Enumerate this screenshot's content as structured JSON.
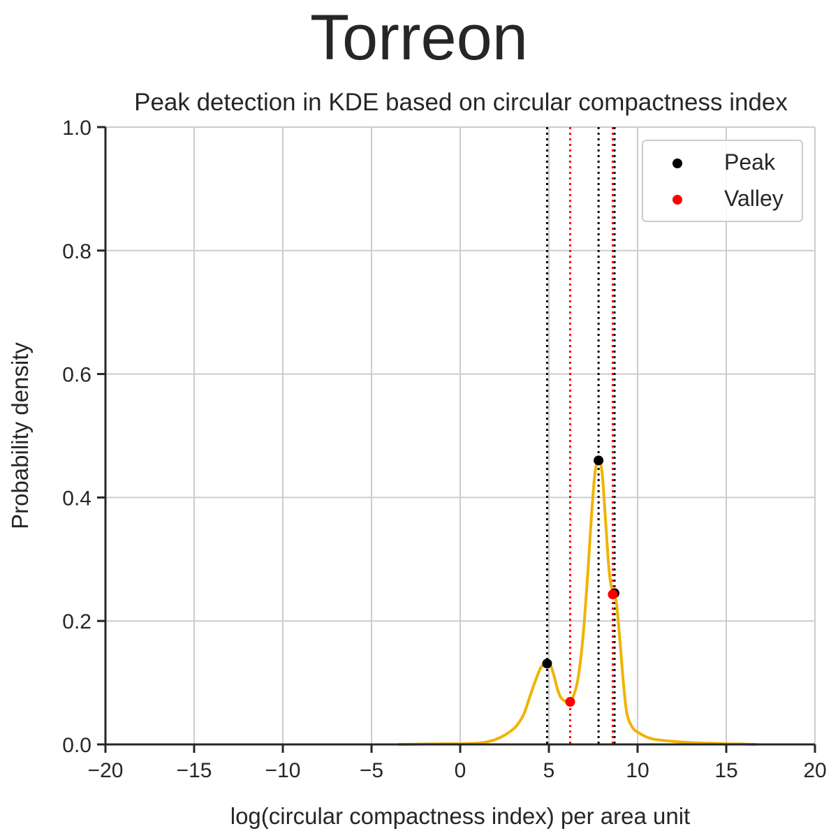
{
  "chart_data": {
    "type": "line",
    "suptitle": "Torreon",
    "title": "Peak detection in KDE based on circular compactness index",
    "xlabel": "log(circular compactness index) per area unit",
    "ylabel": "Probability density",
    "xlim": [
      -20,
      20
    ],
    "ylim": [
      0,
      1.0
    ],
    "xticks": [
      -20,
      -15,
      -10,
      -5,
      0,
      5,
      10,
      15,
      20
    ],
    "xtick_labels": [
      "−20",
      "−15",
      "−10",
      "−5",
      "0",
      "5",
      "10",
      "15",
      "20"
    ],
    "yticks": [
      0.0,
      0.2,
      0.4,
      0.6,
      0.8,
      1.0
    ],
    "ytick_labels": [
      "0.0",
      "0.2",
      "0.4",
      "0.6",
      "0.8",
      "1.0"
    ],
    "grid": true,
    "kde": {
      "color": "#f0b400",
      "x": [
        -3.5,
        -2.0,
        -1.0,
        0.0,
        1.0,
        1.5,
        2.0,
        2.5,
        3.0,
        3.3,
        3.6,
        3.9,
        4.2,
        4.5,
        4.7,
        4.9,
        5.1,
        5.3,
        5.5,
        5.7,
        6.0,
        6.2,
        6.4,
        6.6,
        6.8,
        7.0,
        7.2,
        7.4,
        7.6,
        7.8,
        8.0,
        8.2,
        8.4,
        8.6,
        8.8,
        9.0,
        9.2,
        9.4,
        9.7,
        10.0,
        10.5,
        11.0,
        12.0,
        13.0,
        14.0,
        15.0,
        16.0,
        16.7
      ],
      "y": [
        0.0,
        0.0005,
        0.001,
        0.001,
        0.002,
        0.004,
        0.008,
        0.015,
        0.025,
        0.035,
        0.05,
        0.075,
        0.1,
        0.122,
        0.13,
        0.133,
        0.128,
        0.11,
        0.088,
        0.075,
        0.069,
        0.07,
        0.08,
        0.1,
        0.14,
        0.2,
        0.28,
        0.37,
        0.44,
        0.46,
        0.44,
        0.36,
        0.28,
        0.245,
        0.23,
        0.17,
        0.1,
        0.05,
        0.028,
        0.02,
        0.012,
        0.008,
        0.005,
        0.003,
        0.002,
        0.001,
        0.0005,
        0.0
      ]
    },
    "peaks": {
      "label": "Peak",
      "color": "#000000",
      "x": [
        4.9,
        7.8,
        8.7
      ],
      "y": [
        0.131,
        0.46,
        0.245
      ]
    },
    "valleys": {
      "label": "Valley",
      "color": "#ff0000",
      "x": [
        6.2,
        8.6
      ],
      "y": [
        0.069,
        0.243
      ]
    },
    "legend": {
      "position": "top-right",
      "entries": [
        "Peak",
        "Valley"
      ]
    }
  }
}
